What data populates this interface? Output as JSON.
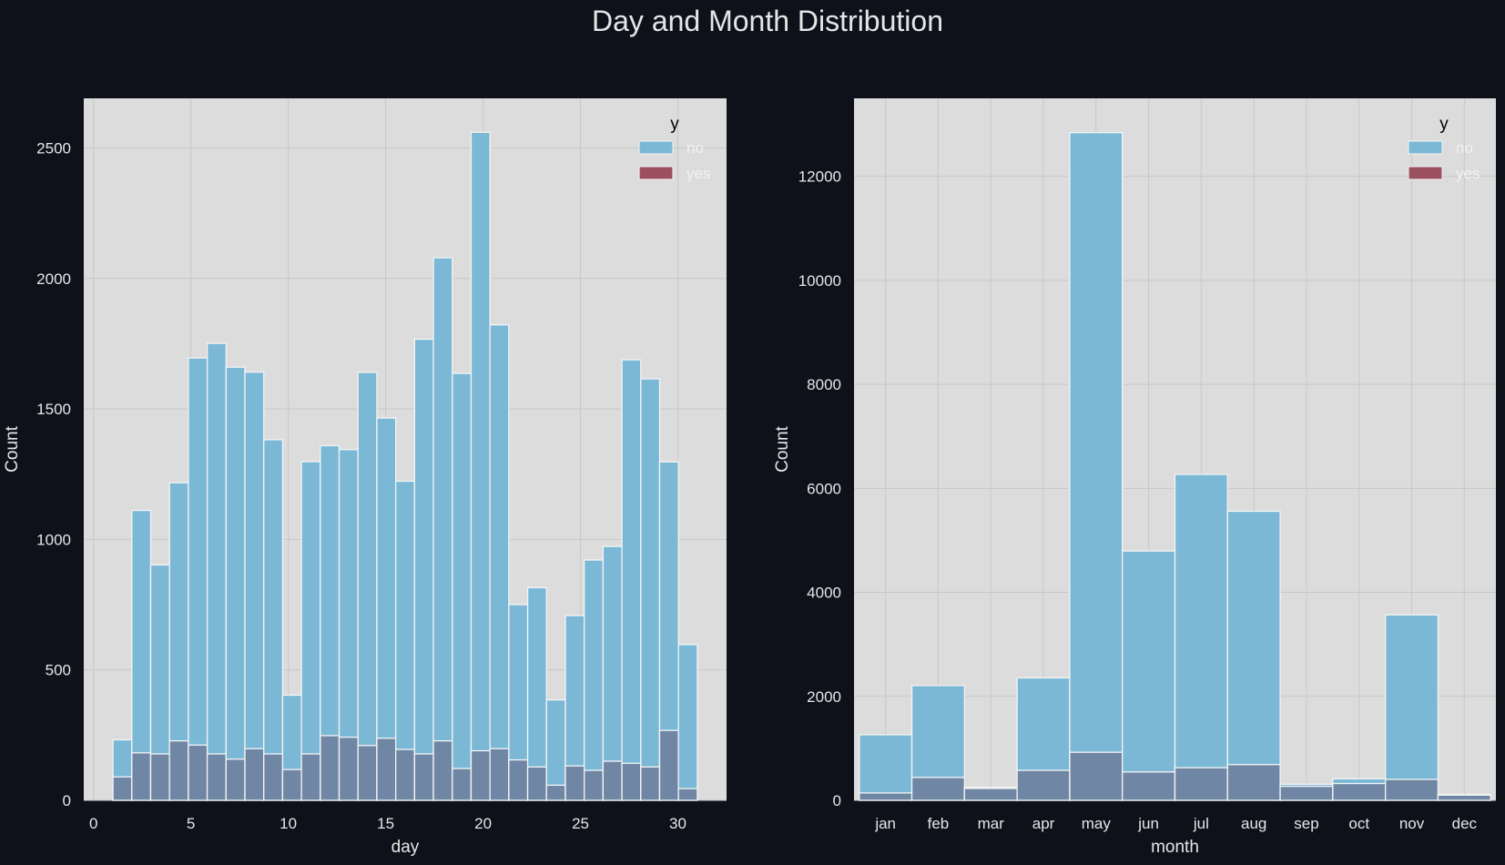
{
  "title": "Day and Month Distribution",
  "colors": {
    "figure_bg": "#0e111a",
    "axes_bg": "#dcdcdc",
    "grid": "#c8c8c8",
    "no": "#7ab8d6",
    "yes": "#9b5060",
    "overlap": "#6f87a4",
    "bar_edge": "#f4f4f4",
    "text": "#e6e6e6"
  },
  "chart_data": [
    {
      "type": "bar",
      "xlabel": "day",
      "ylabel": "Count",
      "xlim": [
        -0.5,
        32.5
      ],
      "ylim": [
        0,
        2690
      ],
      "xticks": [
        0,
        5,
        10,
        15,
        20,
        25,
        30
      ],
      "yticks": [
        0,
        500,
        1000,
        1500,
        2000,
        2500
      ],
      "grid": true,
      "legend": {
        "title": "y",
        "position": "top-right",
        "entries": [
          "no",
          "yes"
        ]
      },
      "bin_edges": [
        1,
        2,
        3,
        4,
        5,
        6,
        7,
        8,
        9,
        10,
        11,
        12,
        13,
        14,
        15,
        16,
        17,
        18,
        19,
        20,
        21,
        22,
        23,
        24,
        25,
        26,
        27,
        28,
        29,
        30,
        31
      ],
      "series": [
        {
          "name": "no",
          "values": [
            232,
            1111,
            902,
            1217,
            1695,
            1751,
            1660,
            1641,
            1382,
            403,
            1298,
            1359,
            1344,
            1640,
            1465,
            1223,
            1767,
            2079,
            1636,
            2560,
            1822,
            750,
            815,
            385,
            708,
            921,
            973,
            1688,
            1615,
            1297,
            597
          ]
        },
        {
          "name": "yes",
          "values": [
            90,
            182,
            178,
            228,
            212,
            178,
            158,
            198,
            178,
            118,
            178,
            248,
            242,
            210,
            238,
            195,
            178,
            228,
            122,
            190,
            198,
            155,
            128,
            58,
            132,
            115,
            150,
            142,
            128,
            268,
            45
          ]
        }
      ]
    },
    {
      "type": "bar",
      "xlabel": "month",
      "ylabel": "Count",
      "ylim": [
        0,
        13500
      ],
      "yticks": [
        0,
        2000,
        4000,
        6000,
        8000,
        10000,
        12000
      ],
      "grid": true,
      "legend": {
        "title": "y",
        "position": "top-right",
        "entries": [
          "no",
          "yes"
        ]
      },
      "categories": [
        "jan",
        "feb",
        "mar",
        "apr",
        "may",
        "jun",
        "jul",
        "aug",
        "sep",
        "oct",
        "nov",
        "dec"
      ],
      "series": [
        {
          "name": "no",
          "values": [
            1261,
            2208,
            229,
            2355,
            12841,
            4795,
            6268,
            5559,
            310,
            415,
            3567,
            114
          ]
        },
        {
          "name": "yes",
          "values": [
            142,
            441,
            248,
            577,
            925,
            546,
            627,
            688,
            269,
            323,
            403,
            100
          ]
        }
      ]
    }
  ]
}
